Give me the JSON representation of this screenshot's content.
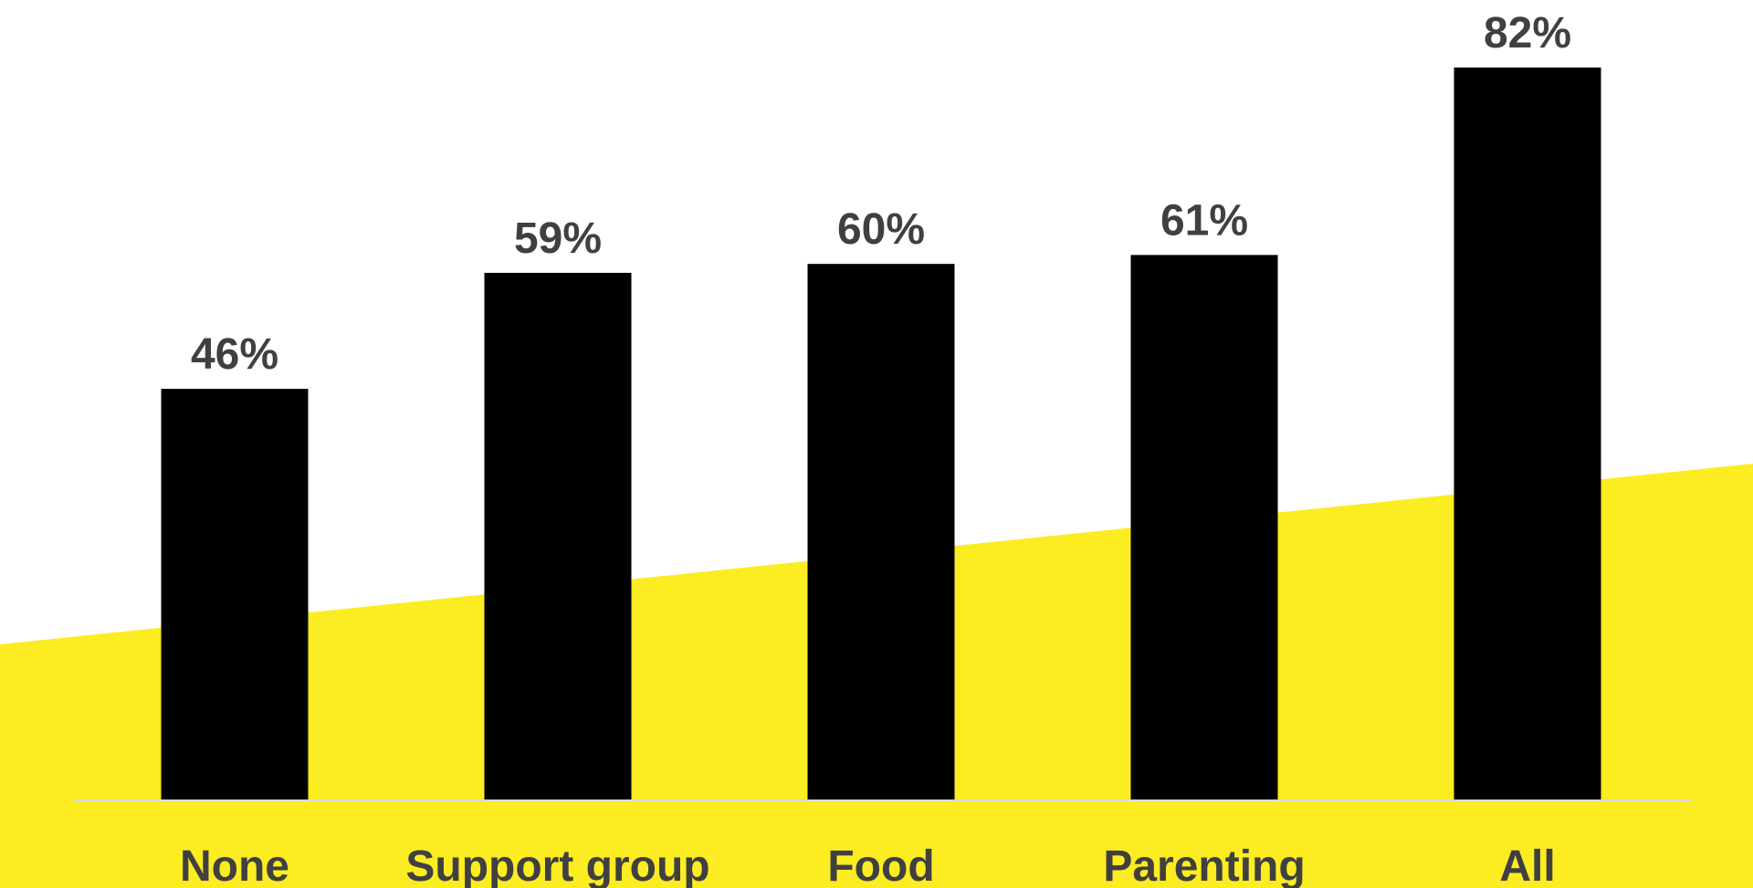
{
  "colors": {
    "background": "#ffffff",
    "accent_band": "#FCEC22",
    "bar": "#000000",
    "label_text": "#404040",
    "baseline": "#d9d9d9"
  },
  "chart_data": {
    "type": "bar",
    "categories": [
      "None",
      "Support group",
      "Food",
      "Parenting",
      "All"
    ],
    "values": [
      46,
      59,
      60,
      61,
      82
    ],
    "value_labels": [
      "46%",
      "59%",
      "60%",
      "61%",
      "82%"
    ],
    "title": "",
    "xlabel": "",
    "ylabel": "",
    "ylim": [
      0,
      82
    ],
    "grid": false,
    "legend": "none"
  }
}
